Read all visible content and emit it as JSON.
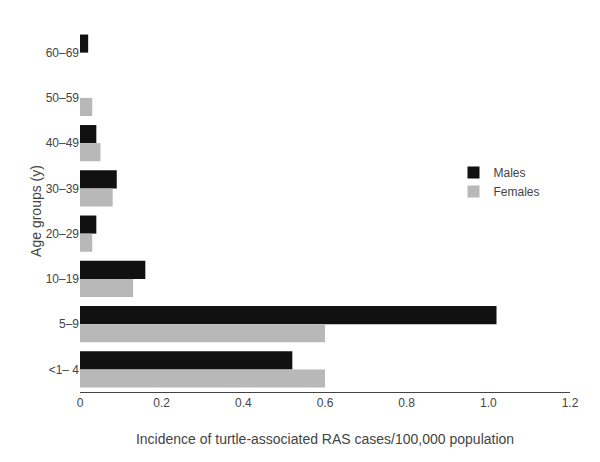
{
  "chart_data": {
    "type": "bar",
    "orientation": "horizontal",
    "categories": [
      "60–69",
      "50–59",
      "40–49",
      "30–39",
      "20–29",
      "10–19",
      "5–9",
      "<1– 4"
    ],
    "series": [
      {
        "name": "Males",
        "color": "#111111",
        "values": [
          0.02,
          0.0,
          0.04,
          0.09,
          0.04,
          0.16,
          1.02,
          0.52
        ]
      },
      {
        "name": "Females",
        "color": "#b8b8b8",
        "values": [
          0.0,
          0.03,
          0.05,
          0.08,
          0.03,
          0.13,
          0.6,
          0.6
        ]
      }
    ],
    "xlabel": "Incidence of turtle-associated RAS cases/100,000 population",
    "ylabel": "Age groups (y)",
    "xlim": [
      0,
      1.2
    ],
    "xticks": [
      0,
      0.2,
      0.4,
      0.6,
      0.8,
      {
        "value": 1.0,
        "label": "1.0"
      },
      1.2
    ],
    "grid": false,
    "legend": "right"
  }
}
